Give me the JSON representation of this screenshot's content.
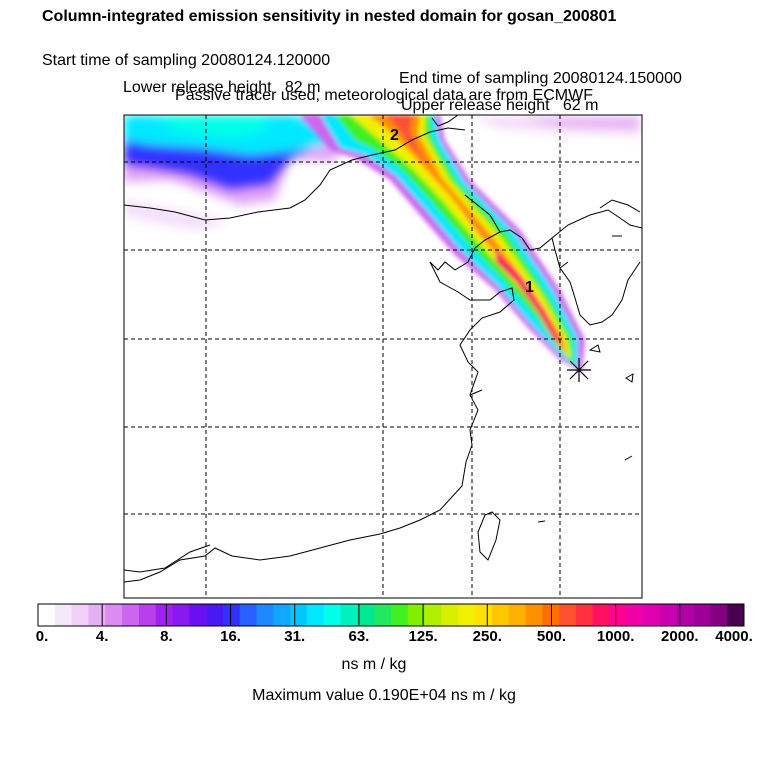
{
  "header": {
    "title": "Column-integrated emission sensitivity in nested domain for gosan_200801",
    "start_label": "Start time of sampling 20080124.120000",
    "end_label": "End time of sampling 20080124.150000",
    "lower_label": "Lower release height   82 m",
    "upper_label": "Upper release height   62 m",
    "tracer_note": "Passive tracer used, meteorological data are from ECMWF"
  },
  "map": {
    "markers": [
      "2",
      "1"
    ],
    "release_symbol": "asterisk"
  },
  "colorbar": {
    "ticks": [
      "0.",
      "4.",
      "8.",
      "16.",
      "31.",
      "63.",
      "125.",
      "250.",
      "500.",
      "1000.",
      "2000.",
      "4000."
    ],
    "units": "ns m / kg",
    "colors": [
      "#ffffff",
      "#f6e8fb",
      "#f0d0f8",
      "#e6b0f4",
      "#dc8cf0",
      "#cc66ee",
      "#b840ea",
      "#a020f0",
      "#8a18f0",
      "#6a10f0",
      "#4a18f0",
      "#3030ff",
      "#2a60ff",
      "#1e88ff",
      "#10a8ff",
      "#00c8ff",
      "#00e8ff",
      "#00ffe8",
      "#00f0c0",
      "#00e890",
      "#20e860",
      "#40f020",
      "#80f000",
      "#b0f000",
      "#d8f000",
      "#f0f000",
      "#ffe000",
      "#ffc800",
      "#ffb000",
      "#ff9000",
      "#ff7000",
      "#ff5030",
      "#ff3040",
      "#ff1060",
      "#ff0090",
      "#f000a8",
      "#e000b0",
      "#c800b0",
      "#b000a8",
      "#9c0098",
      "#800080",
      "#4a0050"
    ]
  },
  "maximum_value": "Maximum value  0.190E+04 ns m / kg"
}
